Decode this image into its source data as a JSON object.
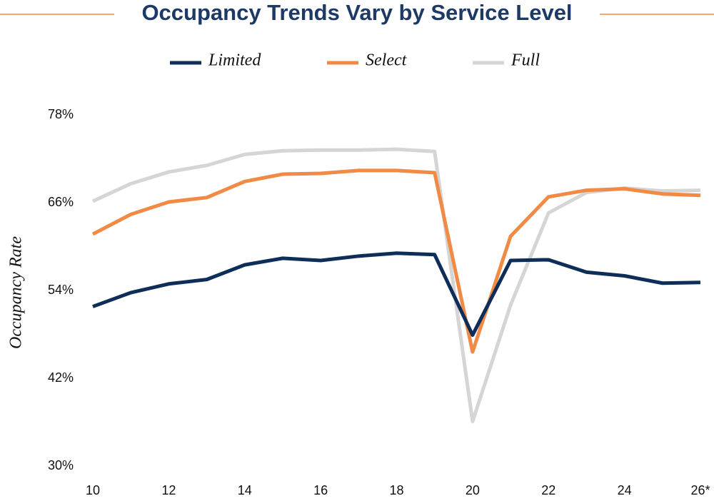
{
  "chart_data": {
    "type": "line",
    "title": "Occupancy Trends Vary by Service Level",
    "y_label": "Occupancy Rate",
    "categories": [
      "10",
      null,
      "12",
      null,
      "14",
      null,
      "16",
      null,
      "18",
      null,
      "20",
      null,
      "22",
      null,
      "24",
      null,
      "26*"
    ],
    "series": [
      {
        "name": "Limited",
        "color": "#0e2d58",
        "values": [
          51.8,
          53.7,
          54.9,
          55.5,
          57.5,
          58.4,
          58.1,
          58.7,
          59.1,
          58.9,
          47.9,
          58.1,
          58.2,
          56.5,
          56.0,
          55.0,
          55.1
        ]
      },
      {
        "name": "Select",
        "color": "#f08a45",
        "values": [
          61.7,
          64.4,
          66.1,
          66.7,
          68.9,
          69.9,
          70.0,
          70.4,
          70.4,
          70.1,
          45.6,
          61.4,
          66.8,
          67.7,
          67.9,
          67.2,
          67.0
        ]
      },
      {
        "name": "Full",
        "color": "#d5d5d5",
        "values": [
          66.2,
          68.6,
          70.2,
          71.1,
          72.6,
          73.1,
          73.2,
          73.2,
          73.3,
          73.0,
          36.1,
          52.0,
          64.6,
          67.4,
          68.0,
          67.6,
          67.7
        ]
      }
    ],
    "ylim": [
      30,
      78
    ],
    "yticks": [
      {
        "value": 30,
        "label": "30%"
      },
      {
        "value": 42,
        "label": "42%"
      },
      {
        "value": 54,
        "label": "54%"
      },
      {
        "value": 66,
        "label": "66%"
      },
      {
        "value": 78,
        "label": "78%"
      }
    ],
    "grid": false,
    "legend": "top"
  }
}
